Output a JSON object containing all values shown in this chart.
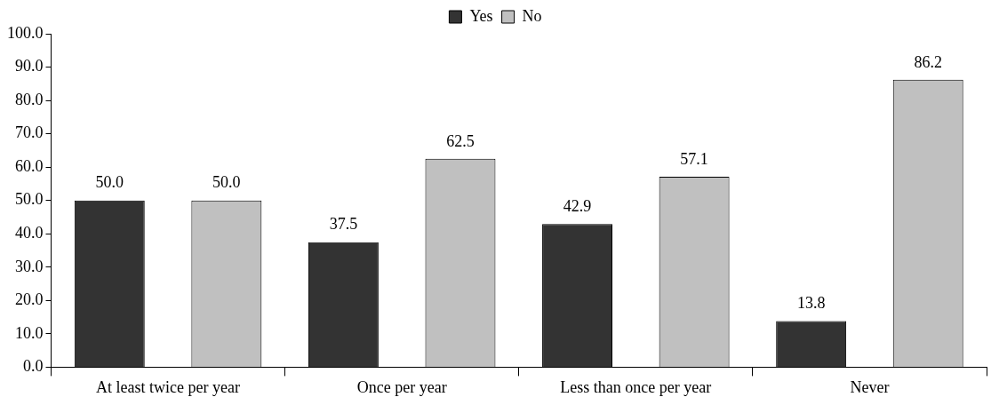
{
  "chart_data": {
    "type": "bar",
    "categories": [
      "At least twice per year",
      "Once per year",
      "Less than once per year",
      "Never"
    ],
    "series": [
      {
        "name": "Yes",
        "color": "#333333",
        "values": [
          50.0,
          37.5,
          42.9,
          13.8
        ],
        "value_labels": [
          "50.0",
          "37.5",
          "42.9",
          "13.8"
        ]
      },
      {
        "name": "No",
        "color": "#c0c0c0",
        "values": [
          50.0,
          62.5,
          57.1,
          86.2
        ],
        "value_labels": [
          "50.0",
          "62.5",
          "57.1",
          "86.2"
        ]
      }
    ],
    "ylim": [
      0,
      100
    ],
    "yticks": [
      {
        "value": 0,
        "label": "0.0"
      },
      {
        "value": 10,
        "label": "10.0"
      },
      {
        "value": 20,
        "label": "20.0"
      },
      {
        "value": 30,
        "label": "30.0"
      },
      {
        "value": 40,
        "label": "40.0"
      },
      {
        "value": 50,
        "label": "50.0"
      },
      {
        "value": 60,
        "label": "60.0"
      },
      {
        "value": 70,
        "label": "70.0"
      },
      {
        "value": 80,
        "label": "80.0"
      },
      {
        "value": 90,
        "label": "90.0"
      },
      {
        "value": 100,
        "label": "100.0"
      }
    ],
    "grid": false,
    "legend": "top"
  }
}
